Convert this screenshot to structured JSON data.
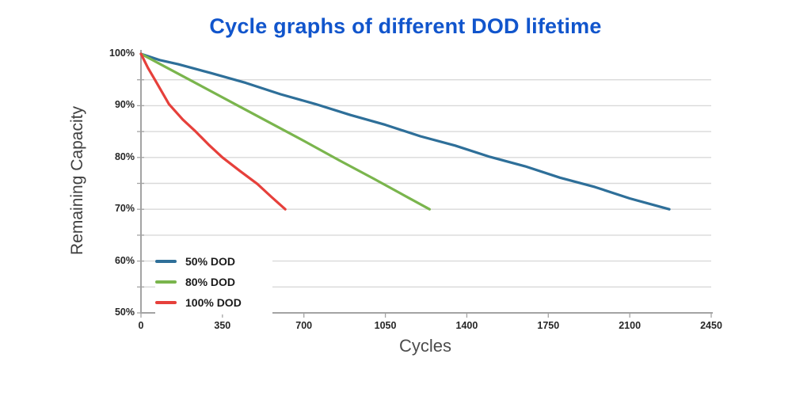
{
  "chart_data": {
    "type": "line",
    "title": "Cycle graphs of different DOD lifetime",
    "title_color": "#1155cc",
    "xlabel": "Cycles",
    "ylabel": "Remaining Capacity",
    "xlim": [
      0,
      2450
    ],
    "ylim": [
      50,
      100
    ],
    "x_ticks": [
      0,
      350,
      700,
      1050,
      1400,
      1750,
      2100,
      2450
    ],
    "y_ticks": [
      100,
      90,
      80,
      70,
      60,
      50
    ],
    "y_tick_labels": [
      "100%",
      "90%",
      "80%",
      "70%",
      "60%",
      "50%"
    ],
    "grid": "horizontal, every 5%, on",
    "grid_color": "#d9d9d9",
    "axis_color": "#a3a3a3",
    "legend_position": "inside lower-left",
    "series": [
      {
        "name": "50% DOD",
        "color": "#2e6f99",
        "points": [
          [
            0,
            100
          ],
          [
            80,
            98.8
          ],
          [
            160,
            98.0
          ],
          [
            300,
            96.3
          ],
          [
            450,
            94.4
          ],
          [
            600,
            92.2
          ],
          [
            750,
            90.3
          ],
          [
            900,
            88.2
          ],
          [
            1050,
            86.3
          ],
          [
            1200,
            84.1
          ],
          [
            1350,
            82.3
          ],
          [
            1500,
            80.1
          ],
          [
            1650,
            78.3
          ],
          [
            1800,
            76.1
          ],
          [
            1950,
            74.3
          ],
          [
            2100,
            72.1
          ],
          [
            2270,
            70
          ]
        ]
      },
      {
        "name": "80% DOD",
        "color": "#7ab54d",
        "points": [
          [
            0,
            100
          ],
          [
            100,
            97.6
          ],
          [
            250,
            94.0
          ],
          [
            400,
            90.4
          ],
          [
            550,
            86.8
          ],
          [
            700,
            83.2
          ],
          [
            850,
            79.5
          ],
          [
            1000,
            75.9
          ],
          [
            1150,
            72.2
          ],
          [
            1240,
            70
          ]
        ]
      },
      {
        "name": "100% DOD",
        "color": "#e6403b",
        "points": [
          [
            0,
            100
          ],
          [
            30,
            97.3
          ],
          [
            60,
            95.0
          ],
          [
            120,
            90.3
          ],
          [
            180,
            87.3
          ],
          [
            235,
            85.0
          ],
          [
            290,
            82.5
          ],
          [
            350,
            80.0
          ],
          [
            425,
            77.4
          ],
          [
            500,
            74.9
          ],
          [
            560,
            72.4
          ],
          [
            620,
            70
          ]
        ]
      }
    ]
  }
}
